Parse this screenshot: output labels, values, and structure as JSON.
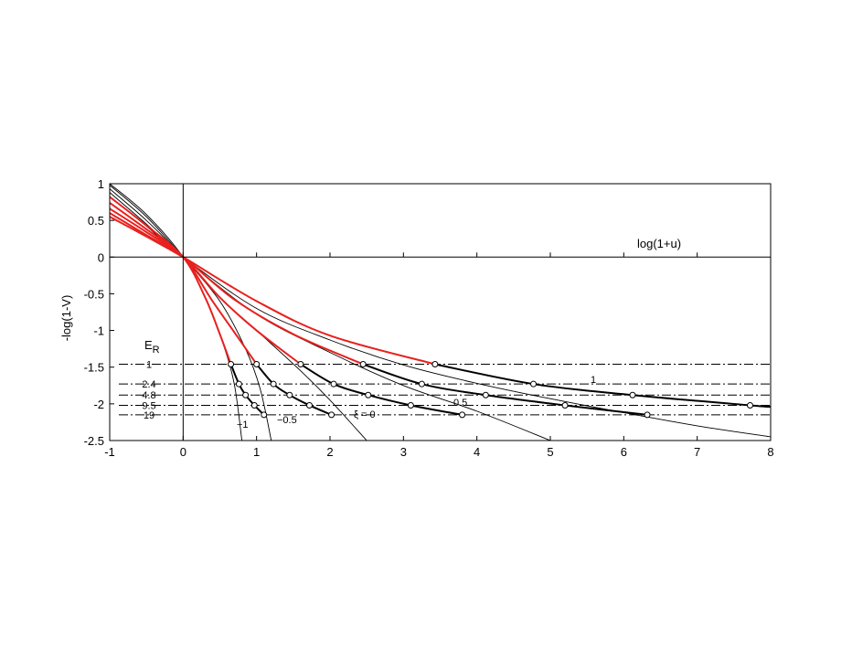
{
  "chart_data": {
    "type": "line",
    "title": "",
    "xlabel": "log(1+u)",
    "ylabel": "-log(1-V)",
    "xlim": [
      -1,
      8
    ],
    "ylim": [
      -2.5,
      1
    ],
    "x_ticks": [
      "-1",
      "0",
      "1",
      "2",
      "3",
      "4",
      "5",
      "6",
      "7",
      "8"
    ],
    "y_ticks": [
      "-2.5",
      "-2",
      "-1.5",
      "-1",
      "-0.5",
      "0",
      "0.5",
      "1"
    ],
    "er_label": "E",
    "er_sub": "R",
    "er_levels": [
      {
        "label": "1",
        "y": -1.46
      },
      {
        "label": "2.4",
        "y": -1.73
      },
      {
        "label": "4.8",
        "y": -1.88
      },
      {
        "label": "9.5",
        "y": -2.02
      },
      {
        "label": "19",
        "y": -2.15
      }
    ],
    "xi_labels": {
      "neg1": "−1",
      "neg05": "−0.5",
      "zero": "ξ  = 0",
      "half": "0.5",
      "one": "1"
    },
    "thin_curves": [
      {
        "points": [
          [
            -1,
            1.0
          ],
          [
            -0.5,
            0.58
          ],
          [
            0,
            0
          ],
          [
            0.3,
            -0.55
          ],
          [
            0.55,
            -1.2
          ],
          [
            0.7,
            -1.75
          ],
          [
            0.8,
            -2.5
          ]
        ]
      },
      {
        "points": [
          [
            -1,
            0.98
          ],
          [
            -0.5,
            0.55
          ],
          [
            0,
            0
          ],
          [
            0.5,
            -0.6
          ],
          [
            0.85,
            -1.25
          ],
          [
            1.05,
            -1.8
          ],
          [
            1.2,
            -2.5
          ]
        ]
      },
      {
        "points": [
          [
            -1,
            0.93
          ],
          [
            -0.5,
            0.5
          ],
          [
            0,
            0
          ],
          [
            0.5,
            -0.55
          ],
          [
            1.0,
            -1.0
          ],
          [
            1.6,
            -1.55
          ],
          [
            2.0,
            -1.95
          ],
          [
            2.5,
            -2.5
          ]
        ]
      },
      {
        "points": [
          [
            -1,
            0.88
          ],
          [
            -0.5,
            0.45
          ],
          [
            0,
            0
          ],
          [
            1.0,
            -0.78
          ],
          [
            2.0,
            -1.3
          ],
          [
            3.0,
            -1.75
          ],
          [
            4.0,
            -2.1
          ],
          [
            5.0,
            -2.5
          ]
        ]
      },
      {
        "points": [
          [
            -1,
            0.82
          ],
          [
            -0.5,
            0.42
          ],
          [
            0,
            0
          ],
          [
            1.0,
            -0.7
          ],
          [
            2.0,
            -1.13
          ],
          [
            3.0,
            -1.47
          ],
          [
            4.0,
            -1.72
          ],
          [
            5.0,
            -1.93
          ],
          [
            6.0,
            -2.12
          ],
          [
            7.0,
            -2.3
          ],
          [
            8.0,
            -2.45
          ]
        ]
      }
    ],
    "red_curves": [
      {
        "points": [
          [
            -1,
            0.82
          ],
          [
            -0.5,
            0.43
          ],
          [
            0,
            0
          ],
          [
            0.3,
            -0.55
          ],
          [
            0.5,
            -1.05
          ],
          [
            0.65,
            -1.46
          ]
        ]
      },
      {
        "points": [
          [
            -1,
            0.74
          ],
          [
            -0.5,
            0.38
          ],
          [
            0,
            0
          ],
          [
            0.4,
            -0.6
          ],
          [
            0.75,
            -1.1
          ],
          [
            1.0,
            -1.46
          ]
        ]
      },
      {
        "points": [
          [
            -1,
            0.66
          ],
          [
            -0.5,
            0.34
          ],
          [
            0,
            0
          ],
          [
            0.5,
            -0.55
          ],
          [
            1.0,
            -1.0
          ],
          [
            1.6,
            -1.46
          ]
        ]
      },
      {
        "points": [
          [
            -1,
            0.6
          ],
          [
            -0.5,
            0.3
          ],
          [
            0,
            0
          ],
          [
            0.7,
            -0.58
          ],
          [
            1.5,
            -1.05
          ],
          [
            2.45,
            -1.46
          ]
        ]
      },
      {
        "points": [
          [
            -1,
            0.55
          ],
          [
            -0.5,
            0.28
          ],
          [
            0,
            0
          ],
          [
            1.0,
            -0.6
          ],
          [
            2.0,
            -1.07
          ],
          [
            3.43,
            -1.46
          ]
        ]
      }
    ],
    "black_curves": [
      {
        "name": "-1",
        "points": [
          [
            0.65,
            -1.46
          ],
          [
            0.76,
            -1.73
          ],
          [
            0.85,
            -1.88
          ],
          [
            0.97,
            -2.02
          ],
          [
            1.1,
            -2.15
          ]
        ]
      },
      {
        "name": "-0.5",
        "points": [
          [
            1.0,
            -1.46
          ],
          [
            1.23,
            -1.73
          ],
          [
            1.45,
            -1.88
          ],
          [
            1.72,
            -2.02
          ],
          [
            2.02,
            -2.15
          ]
        ]
      },
      {
        "name": "0",
        "points": [
          [
            1.6,
            -1.46
          ],
          [
            2.05,
            -1.73
          ],
          [
            2.52,
            -1.88
          ],
          [
            3.1,
            -2.02
          ],
          [
            3.8,
            -2.15
          ]
        ]
      },
      {
        "name": "0.5",
        "points": [
          [
            2.45,
            -1.46
          ],
          [
            3.25,
            -1.73
          ],
          [
            4.12,
            -1.88
          ],
          [
            5.2,
            -2.02
          ],
          [
            6.32,
            -2.15
          ]
        ]
      },
      {
        "name": "1",
        "points": [
          [
            3.43,
            -1.46
          ],
          [
            4.77,
            -1.73
          ],
          [
            6.12,
            -1.88
          ],
          [
            7.72,
            -2.02
          ],
          [
            8.0,
            -2.04
          ]
        ]
      }
    ]
  }
}
